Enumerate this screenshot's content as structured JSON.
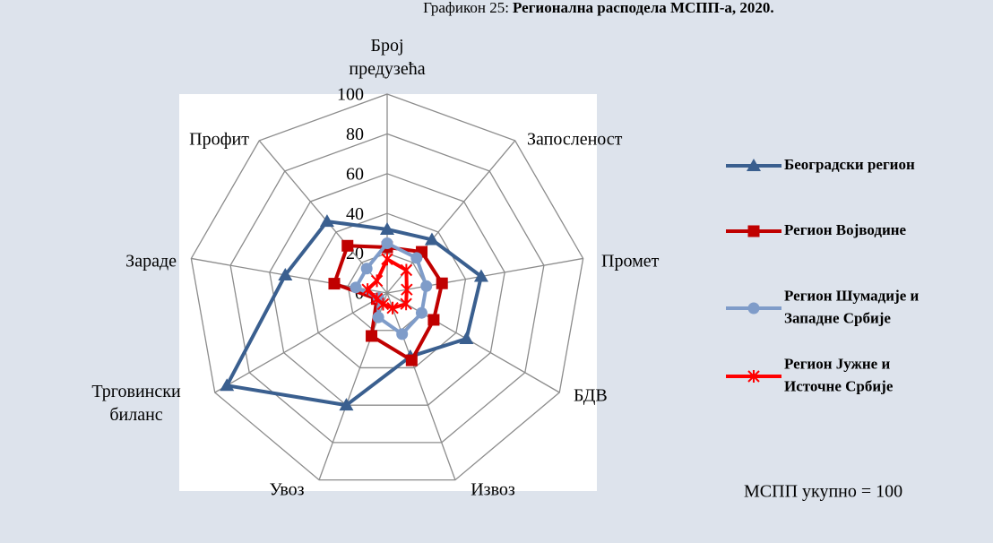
{
  "chart_data": {
    "type": "radar",
    "title_label": "Графикон 25:",
    "title": "Регионална расподела МСПП-а, 2020.",
    "annotation": "МСПП укупно = 100",
    "categories": [
      "Број\nпредузећа",
      "Запосленост",
      "Промет",
      "БДВ",
      "Извоз",
      "Увоз",
      "Трговински\nбиланс",
      "Зараде",
      "Профит"
    ],
    "rlim": [
      0,
      100
    ],
    "rticks": [
      0,
      20,
      40,
      60,
      80,
      100
    ],
    "grid": true,
    "legend": "right",
    "series": [
      {
        "name": "Београдски регион",
        "color": "#3a5f8f",
        "marker": "triangle",
        "values": [
          32,
          35,
          48,
          46,
          34,
          60,
          93,
          52,
          47
        ]
      },
      {
        "name": "Регион Војводине",
        "color": "#c00000",
        "marker": "square",
        "values": [
          23,
          27,
          28,
          27,
          36,
          23,
          6,
          27,
          31
        ]
      },
      {
        "name": "Регион Шумадије и\nЗападне Србије",
        "color": "#7f9cc9",
        "marker": "circle",
        "values": [
          25,
          23,
          20,
          20,
          22,
          13,
          5,
          16,
          16
        ]
      },
      {
        "name": "Регион Јужне и\nИсточне Србије",
        "color": "#ff0000",
        "marker": "asterisk",
        "values": [
          17,
          15,
          10,
          11,
          8,
          6,
          6,
          10,
          8
        ]
      }
    ]
  }
}
